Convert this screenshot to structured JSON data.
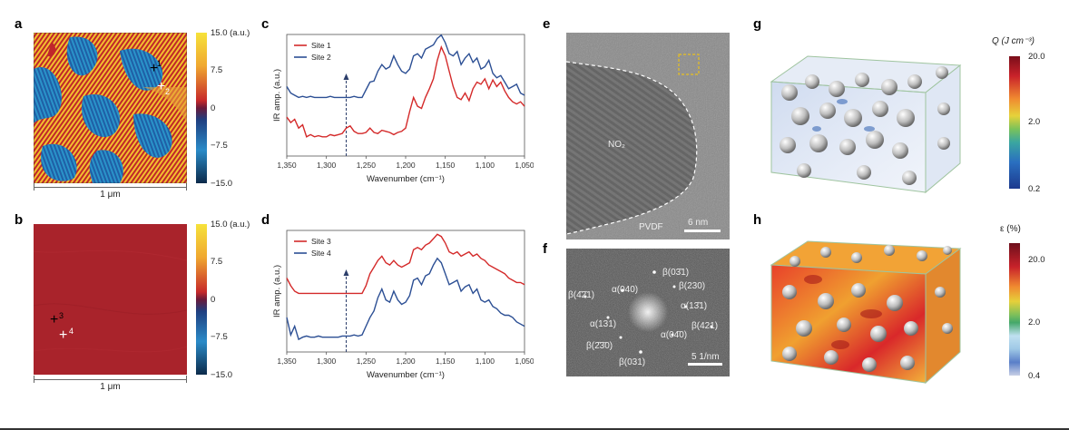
{
  "panels": {
    "a": {
      "label": "a",
      "scale": "1 μm",
      "colorbar": {
        "ticks": [
          "15.0 (a.u.)",
          "7.5",
          "0",
          "−7.5",
          "−15.0"
        ]
      },
      "markers": [
        {
          "label": "1"
        },
        {
          "label": "2"
        }
      ]
    },
    "b": {
      "label": "b",
      "scale": "1 μm",
      "colorbar": {
        "ticks": [
          "15.0 (a.u.)",
          "7.5",
          "0",
          "−7.5",
          "−15.0"
        ]
      },
      "markers": [
        {
          "label": "3"
        },
        {
          "label": "4"
        }
      ]
    },
    "c": {
      "label": "c"
    },
    "d": {
      "label": "d"
    },
    "e": {
      "label": "e",
      "region_label": "NO₂",
      "pvdf_label": "PVDF",
      "scale": "6 nm"
    },
    "f": {
      "label": "f",
      "scale": "5 1/nm",
      "spots": [
        "β(03̄1)",
        "α(040)",
        "β(230)",
        "β(4̄2̄1)",
        "α(13̄1)",
        "α(131)",
        "β(421)",
        "α(04̄0)",
        "β(2̄3̄0)",
        "β(031)"
      ]
    },
    "g": {
      "label": "g",
      "colorbar_title": "Q (J cm⁻³)",
      "ticks": [
        "20.0",
        "2.0",
        "0.2"
      ]
    },
    "h": {
      "label": "h",
      "colorbar_title": "ε (%)",
      "ticks": [
        "20.0",
        "2.0",
        "0.4"
      ]
    }
  },
  "chart_data": [
    {
      "panel": "c",
      "type": "line",
      "title": "",
      "xlabel": "Wavenumber (cm⁻¹)",
      "ylabel": "IR amp. (a.u.)",
      "xlim": [
        1350,
        1050
      ],
      "xticks": [
        "1,350",
        "1,300",
        "1,250",
        "1,200",
        "1,150",
        "1,100",
        "1,050"
      ],
      "ylim": [
        0,
        1
      ],
      "marker_x": 1275,
      "legend": "top-left",
      "series": [
        {
          "name": "Site 1",
          "color": "#d42a2a",
          "x": [
            1350,
            1345,
            1340,
            1335,
            1330,
            1325,
            1320,
            1315,
            1310,
            1305,
            1300,
            1295,
            1290,
            1285,
            1280,
            1275,
            1270,
            1265,
            1260,
            1255,
            1250,
            1245,
            1240,
            1235,
            1230,
            1225,
            1220,
            1215,
            1210,
            1205,
            1200,
            1195,
            1190,
            1185,
            1180,
            1175,
            1170,
            1165,
            1160,
            1155,
            1150,
            1145,
            1140,
            1135,
            1130,
            1125,
            1120,
            1115,
            1110,
            1105,
            1100,
            1095,
            1090,
            1085,
            1080,
            1075,
            1070,
            1065,
            1060,
            1055,
            1050
          ],
          "values": [
            0.3,
            0.25,
            0.28,
            0.2,
            0.23,
            0.12,
            0.14,
            0.12,
            0.13,
            0.12,
            0.12,
            0.14,
            0.13,
            0.14,
            0.15,
            0.2,
            0.22,
            0.17,
            0.15,
            0.15,
            0.16,
            0.2,
            0.16,
            0.15,
            0.18,
            0.17,
            0.16,
            0.14,
            0.16,
            0.17,
            0.2,
            0.35,
            0.48,
            0.4,
            0.38,
            0.48,
            0.56,
            0.65,
            0.82,
            0.94,
            0.86,
            0.72,
            0.58,
            0.48,
            0.46,
            0.52,
            0.45,
            0.56,
            0.62,
            0.6,
            0.65,
            0.56,
            0.64,
            0.58,
            0.62,
            0.54,
            0.48,
            0.44,
            0.42,
            0.44,
            0.4
          ]
        },
        {
          "name": "Site 2",
          "color": "#2c4f94",
          "x": [
            1350,
            1345,
            1340,
            1335,
            1330,
            1325,
            1320,
            1315,
            1310,
            1305,
            1300,
            1295,
            1290,
            1285,
            1280,
            1275,
            1270,
            1265,
            1260,
            1255,
            1250,
            1245,
            1240,
            1235,
            1230,
            1225,
            1220,
            1215,
            1210,
            1205,
            1200,
            1195,
            1190,
            1185,
            1180,
            1175,
            1170,
            1165,
            1160,
            1155,
            1150,
            1145,
            1140,
            1135,
            1130,
            1125,
            1120,
            1115,
            1110,
            1105,
            1100,
            1095,
            1090,
            1085,
            1080,
            1075,
            1070,
            1065,
            1060,
            1055,
            1050
          ],
          "values": [
            0.58,
            0.52,
            0.5,
            0.48,
            0.49,
            0.48,
            0.49,
            0.48,
            0.48,
            0.48,
            0.48,
            0.49,
            0.48,
            0.48,
            0.48,
            0.48,
            0.48,
            0.49,
            0.48,
            0.48,
            0.55,
            0.62,
            0.63,
            0.72,
            0.78,
            0.74,
            0.76,
            0.86,
            0.78,
            0.72,
            0.7,
            0.74,
            0.86,
            0.88,
            0.84,
            0.92,
            0.94,
            0.96,
            1.02,
            1.05,
            0.98,
            0.88,
            0.86,
            0.9,
            0.78,
            0.84,
            0.88,
            0.8,
            0.84,
            0.74,
            0.76,
            0.82,
            0.7,
            0.66,
            0.68,
            0.62,
            0.56,
            0.58,
            0.6,
            0.52,
            0.5
          ]
        }
      ]
    },
    {
      "panel": "d",
      "type": "line",
      "title": "",
      "xlabel": "Wavenumber (cm⁻¹)",
      "ylabel": "IR amp. (a.u.)",
      "xlim": [
        1350,
        1050
      ],
      "xticks": [
        "1,350",
        "1,300",
        "1,250",
        "1,200",
        "1,150",
        "1,100",
        "1,050"
      ],
      "ylim": [
        0,
        1
      ],
      "marker_x": 1275,
      "legend": "top-left",
      "series": [
        {
          "name": "Site 3",
          "color": "#d42a2a",
          "x": [
            1350,
            1345,
            1340,
            1335,
            1330,
            1325,
            1320,
            1315,
            1310,
            1305,
            1300,
            1295,
            1290,
            1285,
            1280,
            1275,
            1270,
            1265,
            1260,
            1255,
            1250,
            1245,
            1240,
            1235,
            1230,
            1225,
            1220,
            1215,
            1210,
            1205,
            1200,
            1195,
            1190,
            1185,
            1180,
            1175,
            1170,
            1165,
            1160,
            1155,
            1150,
            1145,
            1140,
            1135,
            1130,
            1125,
            1120,
            1115,
            1110,
            1105,
            1100,
            1095,
            1090,
            1085,
            1080,
            1075,
            1070,
            1065,
            1060,
            1055,
            1050
          ],
          "values": [
            0.62,
            0.55,
            0.5,
            0.48,
            0.48,
            0.48,
            0.48,
            0.48,
            0.48,
            0.48,
            0.48,
            0.48,
            0.48,
            0.48,
            0.48,
            0.48,
            0.48,
            0.48,
            0.48,
            0.48,
            0.55,
            0.66,
            0.72,
            0.78,
            0.82,
            0.76,
            0.74,
            0.78,
            0.74,
            0.72,
            0.74,
            0.76,
            0.88,
            0.9,
            0.88,
            0.92,
            0.94,
            0.98,
            1.02,
            1.0,
            0.94,
            0.86,
            0.84,
            0.86,
            0.82,
            0.84,
            0.86,
            0.82,
            0.84,
            0.8,
            0.78,
            0.74,
            0.72,
            0.7,
            0.68,
            0.66,
            0.62,
            0.6,
            0.58,
            0.58,
            0.56
          ]
        },
        {
          "name": "Site 4",
          "color": "#2c4f94",
          "x": [
            1350,
            1345,
            1340,
            1335,
            1330,
            1325,
            1320,
            1315,
            1310,
            1305,
            1300,
            1295,
            1290,
            1285,
            1280,
            1275,
            1270,
            1265,
            1260,
            1255,
            1250,
            1245,
            1240,
            1235,
            1230,
            1225,
            1220,
            1215,
            1210,
            1205,
            1200,
            1195,
            1190,
            1185,
            1180,
            1175,
            1170,
            1165,
            1160,
            1155,
            1150,
            1145,
            1140,
            1135,
            1130,
            1125,
            1120,
            1115,
            1110,
            1105,
            1100,
            1095,
            1090,
            1085,
            1080,
            1075,
            1070,
            1065,
            1060,
            1055,
            1050
          ],
          "values": [
            0.26,
            0.1,
            0.18,
            0.06,
            0.08,
            0.09,
            0.08,
            0.08,
            0.09,
            0.08,
            0.08,
            0.08,
            0.08,
            0.08,
            0.09,
            0.09,
            0.09,
            0.1,
            0.09,
            0.1,
            0.18,
            0.26,
            0.32,
            0.44,
            0.52,
            0.42,
            0.4,
            0.5,
            0.42,
            0.38,
            0.4,
            0.46,
            0.6,
            0.62,
            0.56,
            0.64,
            0.66,
            0.74,
            0.8,
            0.76,
            0.66,
            0.56,
            0.58,
            0.6,
            0.5,
            0.54,
            0.56,
            0.48,
            0.52,
            0.42,
            0.4,
            0.42,
            0.36,
            0.34,
            0.3,
            0.28,
            0.28,
            0.26,
            0.22,
            0.2,
            0.18
          ]
        }
      ]
    }
  ]
}
